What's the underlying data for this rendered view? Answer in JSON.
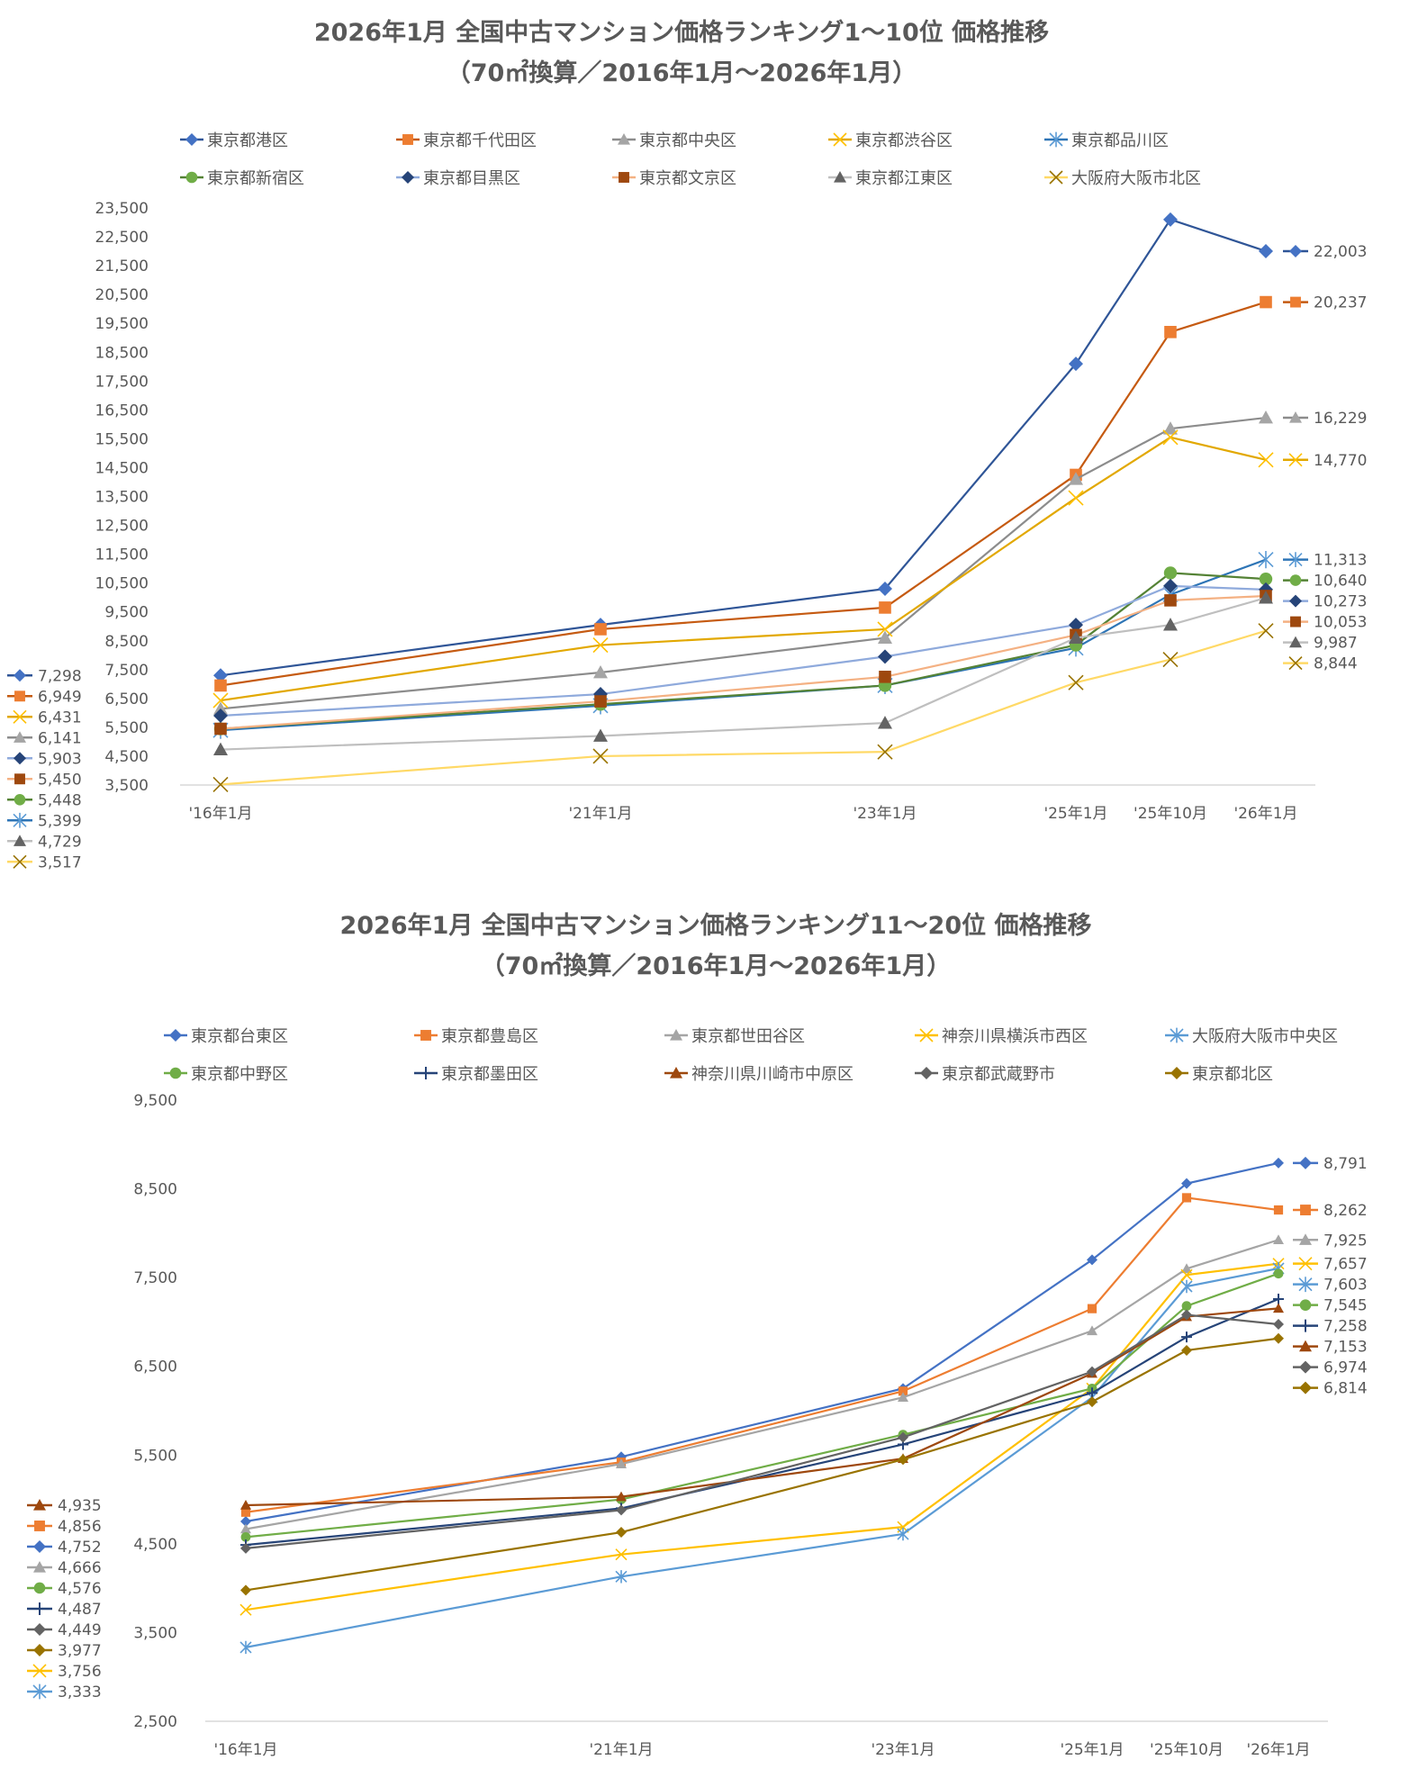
{
  "chart_data": [
    {
      "type": "line",
      "title": "2026年1月 全国中古マンション価格ランキング1～10位 価格推移",
      "subtitle": "（70㎡換算／2016年1月～2026年1月）",
      "xlabel": "",
      "ylabel": "",
      "x": [
        "'16年1月",
        "'21年1月",
        "'23年1月",
        "'25年1月",
        "'25年10月",
        "'26年1月"
      ],
      "ylim": [
        3500,
        23500
      ],
      "yticks": [
        "3,500",
        "4,500",
        "5,500",
        "6,500",
        "7,500",
        "8,500",
        "9,500",
        "10,500",
        "11,500",
        "12,500",
        "13,500",
        "14,500",
        "15,500",
        "16,500",
        "17,500",
        "18,500",
        "19,500",
        "20,500",
        "21,500",
        "22,500",
        "23,500"
      ],
      "legend_position": "top",
      "grid": false,
      "series": [
        {
          "name": "東京都港区",
          "color": "#4472C4",
          "line_color": "#2F5597",
          "marker": "diamond",
          "values": [
            7298,
            9050,
            10300,
            18100,
            23100,
            22003
          ],
          "start_label": "7,298",
          "end_label": "22,003"
        },
        {
          "name": "東京都千代田区",
          "color": "#ED7D31",
          "line_color": "#C55A11",
          "marker": "square",
          "values": [
            6949,
            8900,
            9650,
            14250,
            19200,
            20237
          ],
          "start_label": "6,949",
          "end_label": "20,237"
        },
        {
          "name": "東京都中央区",
          "color": "#A5A5A5",
          "line_color": "#8C8C8C",
          "marker": "triangle",
          "values": [
            6141,
            7400,
            8600,
            14100,
            15850,
            16229
          ],
          "start_label": "6,141",
          "end_label": "16,229"
        },
        {
          "name": "東京都渋谷区",
          "color": "#FFC000",
          "line_color": "#E2A800",
          "marker": "x",
          "values": [
            6431,
            8350,
            8900,
            13450,
            15550,
            14770
          ],
          "start_label": "6,431",
          "end_label": "14,770"
        },
        {
          "name": "東京都品川区",
          "color": "#5B9BD5",
          "line_color": "#2E75B6",
          "marker": "star",
          "values": [
            5399,
            6250,
            6950,
            8250,
            10100,
            11313
          ],
          "start_label": "5,399",
          "end_label": "11,313"
        },
        {
          "name": "東京都新宿区",
          "color": "#70AD47",
          "line_color": "#548235",
          "marker": "circle",
          "values": [
            5448,
            6300,
            6950,
            8350,
            10850,
            10640
          ],
          "start_label": "5,448",
          "end_label": "10,640"
        },
        {
          "name": "東京都目黒区",
          "color": "#264478",
          "line_color": "#8FAADC",
          "marker": "diamond",
          "values": [
            5903,
            6650,
            7950,
            9050,
            10400,
            10273
          ],
          "start_label": "5,903",
          "end_label": "10,273"
        },
        {
          "name": "東京都文京区",
          "color": "#9E480E",
          "line_color": "#F4B183",
          "marker": "square",
          "values": [
            5450,
            6400,
            7250,
            8700,
            9900,
            10053
          ],
          "start_label": "5,450",
          "end_label": "10,053"
        },
        {
          "name": "東京都江東区",
          "color": "#636363",
          "line_color": "#BFBFBF",
          "marker": "triangle",
          "values": [
            4729,
            5200,
            5650,
            8600,
            9050,
            9987
          ],
          "start_label": "4,729",
          "end_label": "9,987"
        },
        {
          "name": "大阪府大阪市北区",
          "color": "#997300",
          "line_color": "#FFD966",
          "marker": "x",
          "values": [
            3517,
            4500,
            4650,
            7050,
            7850,
            8844
          ],
          "start_label": "3,517",
          "end_label": "8,844"
        }
      ]
    },
    {
      "type": "line",
      "title": "2026年1月 全国中古マンション価格ランキング11～20位 価格推移",
      "subtitle": "（70㎡換算／2016年1月～2026年1月）",
      "xlabel": "",
      "ylabel": "",
      "x": [
        "'16年1月",
        "'21年1月",
        "'23年1月",
        "'25年1月",
        "'25年10月",
        "'26年1月"
      ],
      "ylim": [
        2500,
        9500
      ],
      "yticks": [
        "2,500",
        "3,500",
        "4,500",
        "5,500",
        "6,500",
        "7,500",
        "8,500",
        "9,500"
      ],
      "legend_position": "top",
      "grid": false,
      "series": [
        {
          "name": "東京都台東区",
          "color": "#4472C4",
          "line_color": "#4472C4",
          "marker": "diamond",
          "values": [
            4752,
            5480,
            6250,
            7700,
            8560,
            8791
          ],
          "start_label": "4,752",
          "end_label": "8,791"
        },
        {
          "name": "東京都豊島区",
          "color": "#ED7D31",
          "line_color": "#ED7D31",
          "marker": "square",
          "values": [
            4856,
            5420,
            6220,
            7150,
            8400,
            8262
          ],
          "start_label": "4,856",
          "end_label": "8,262"
        },
        {
          "name": "東京都世田谷区",
          "color": "#A5A5A5",
          "line_color": "#A5A5A5",
          "marker": "triangle",
          "values": [
            4666,
            5400,
            6150,
            6900,
            7600,
            7925
          ],
          "start_label": "4,666",
          "end_label": "7,925"
        },
        {
          "name": "神奈川県横浜市西区",
          "color": "#FFC000",
          "line_color": "#FFC000",
          "marker": "x",
          "values": [
            3756,
            4380,
            4690,
            6250,
            7530,
            7657
          ],
          "start_label": "3,756",
          "end_label": "7,657"
        },
        {
          "name": "大阪府大阪市中央区",
          "color": "#5B9BD5",
          "line_color": "#5B9BD5",
          "marker": "star",
          "values": [
            3333,
            4130,
            4610,
            6150,
            7400,
            7603
          ],
          "start_label": "3,333",
          "end_label": "7,603"
        },
        {
          "name": "東京都中野区",
          "color": "#70AD47",
          "line_color": "#70AD47",
          "marker": "circle",
          "values": [
            4576,
            5000,
            5730,
            6250,
            7180,
            7545
          ],
          "start_label": "4,576",
          "end_label": "7,545"
        },
        {
          "name": "東京都墨田区",
          "color": "#264478",
          "line_color": "#264478",
          "marker": "plus",
          "values": [
            4487,
            4900,
            5620,
            6200,
            6830,
            7258
          ],
          "start_label": "4,487",
          "end_label": "7,258"
        },
        {
          "name": "神奈川県川崎市中原区",
          "color": "#9E480E",
          "line_color": "#9E480E",
          "marker": "triangle",
          "values": [
            4935,
            5030,
            5460,
            6420,
            7060,
            7153
          ],
          "start_label": "4,935",
          "end_label": "7,153"
        },
        {
          "name": "東京都武蔵野市",
          "color": "#636363",
          "line_color": "#636363",
          "marker": "diamond",
          "values": [
            4449,
            4880,
            5700,
            6440,
            7080,
            6974
          ],
          "start_label": "4,449",
          "end_label": "6,974"
        },
        {
          "name": "東京都北区",
          "color": "#997300",
          "line_color": "#997300",
          "marker": "diamond",
          "values": [
            3977,
            4630,
            5450,
            6100,
            6680,
            6814
          ],
          "start_label": "3,977",
          "end_label": "6,814"
        }
      ]
    }
  ]
}
